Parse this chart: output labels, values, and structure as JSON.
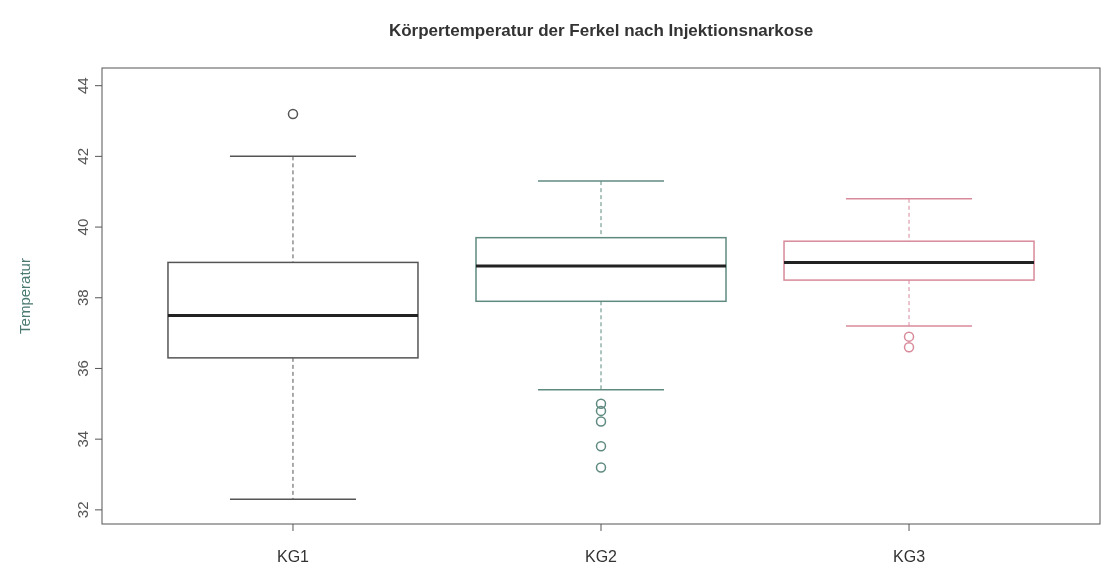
{
  "chart_data": {
    "type": "box",
    "title": "Körpertemperatur der Ferkel nach Injektionsnarkose",
    "ylabel": "Temperatur",
    "categories": [
      "KG1",
      "KG2",
      "KG3"
    ],
    "colors": [
      "#555555",
      "#5f8a80",
      "#d88a9a"
    ],
    "boxes": [
      {
        "low": 32.3,
        "q1": 36.3,
        "median": 37.5,
        "q3": 39.0,
        "high": 42.0,
        "outliers": [
          43.2
        ]
      },
      {
        "low": 35.4,
        "q1": 37.9,
        "median": 38.9,
        "q3": 39.7,
        "high": 41.3,
        "outliers": [
          35.0,
          34.8,
          34.5,
          33.8,
          33.2
        ]
      },
      {
        "low": 37.2,
        "q1": 38.5,
        "median": 39.0,
        "q3": 39.6,
        "high": 40.8,
        "outliers": [
          36.9,
          36.6
        ]
      }
    ],
    "ylim": [
      31.6,
      44.5
    ],
    "yticks": [
      32,
      34,
      36,
      38,
      40,
      42,
      44
    ],
    "grid": false
  }
}
